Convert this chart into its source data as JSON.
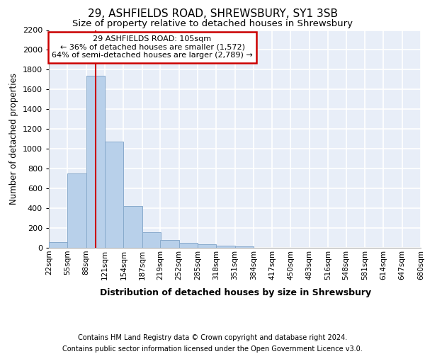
{
  "title1": "29, ASHFIELDS ROAD, SHREWSBURY, SY1 3SB",
  "title2": "Size of property relative to detached houses in Shrewsbury",
  "xlabel": "Distribution of detached houses by size in Shrewsbury",
  "ylabel": "Number of detached properties",
  "footer1": "Contains HM Land Registry data © Crown copyright and database right 2024.",
  "footer2": "Contains public sector information licensed under the Open Government Licence v3.0.",
  "bin_edges": [
    22,
    55,
    88,
    121,
    154,
    187,
    219,
    252,
    285,
    318,
    351,
    384,
    417,
    450,
    483,
    516,
    548,
    581,
    614,
    647,
    680
  ],
  "bar_heights": [
    55,
    750,
    1740,
    1070,
    420,
    160,
    80,
    47,
    35,
    25,
    15,
    0,
    0,
    0,
    0,
    0,
    0,
    0,
    0,
    0
  ],
  "bar_color": "#b8d0ea",
  "bar_edgecolor": "#88aacc",
  "property_size": 105,
  "property_line_color": "#cc0000",
  "annotation_line1": "29 ASHFIELDS ROAD: 105sqm",
  "annotation_line2": "← 36% of detached houses are smaller (1,572)",
  "annotation_line3": "64% of semi-detached houses are larger (2,789) →",
  "annotation_box_color": "#cc0000",
  "ylim": [
    0,
    2200
  ],
  "yticks": [
    0,
    200,
    400,
    600,
    800,
    1000,
    1200,
    1400,
    1600,
    1800,
    2000,
    2200
  ],
  "background_color": "#e8eef8",
  "grid_color": "#ffffff",
  "tick_labels": [
    "22sqm",
    "55sqm",
    "88sqm",
    "121sqm",
    "154sqm",
    "187sqm",
    "219sqm",
    "252sqm",
    "285sqm",
    "318sqm",
    "351sqm",
    "384sqm",
    "417sqm",
    "450sqm",
    "483sqm",
    "516sqm",
    "548sqm",
    "581sqm",
    "614sqm",
    "647sqm",
    "680sqm"
  ],
  "title1_fontsize": 11,
  "title2_fontsize": 9.5,
  "ylabel_fontsize": 8.5,
  "xlabel_fontsize": 9,
  "footer_fontsize": 7,
  "tick_fontsize": 7.5,
  "ytick_fontsize": 8
}
